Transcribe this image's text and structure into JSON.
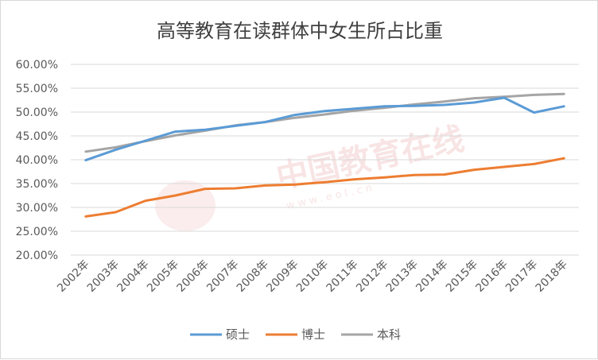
{
  "chart_data": {
    "type": "line",
    "title": "高等教育在读群体中女生所占比重",
    "xlabel": "",
    "ylabel": "",
    "categories": [
      "2002年",
      "2003年",
      "2004年",
      "2005年",
      "2006年",
      "2007年",
      "2008年",
      "2009年",
      "2010年",
      "2011年",
      "2012年",
      "2013年",
      "2014年",
      "2015年",
      "2016年",
      "2017年",
      "2018年"
    ],
    "ylim": [
      0.2,
      0.6
    ],
    "yticks": [
      0.2,
      0.25,
      0.3,
      0.35,
      0.4,
      0.45,
      0.5,
      0.55,
      0.6
    ],
    "ytick_labels": [
      "20.00%",
      "25.00%",
      "30.00%",
      "35.00%",
      "40.00%",
      "45.00%",
      "50.00%",
      "55.00%",
      "60.00%"
    ],
    "grid": true,
    "legend_position": "bottom",
    "series": [
      {
        "name": "硕士",
        "color": "#5b9bd5",
        "values": [
          0.399,
          0.421,
          0.44,
          0.459,
          0.463,
          0.471,
          0.479,
          0.494,
          0.502,
          0.507,
          0.512,
          0.513,
          0.515,
          0.52,
          0.53,
          0.499,
          0.512
        ]
      },
      {
        "name": "博士",
        "color": "#ed7d31",
        "values": [
          0.281,
          0.29,
          0.314,
          0.325,
          0.339,
          0.34,
          0.346,
          0.348,
          0.353,
          0.359,
          0.363,
          0.368,
          0.369,
          0.379,
          0.385,
          0.391,
          0.403
        ]
      },
      {
        "name": "本科",
        "color": "#a5a5a5",
        "values": [
          0.417,
          0.426,
          0.439,
          0.451,
          0.461,
          0.472,
          0.479,
          0.488,
          0.495,
          0.503,
          0.509,
          0.516,
          0.522,
          0.529,
          0.532,
          0.536,
          0.538
        ]
      }
    ]
  },
  "watermark": {
    "text": "中国教育在线",
    "sub": "www.eol.cn"
  }
}
